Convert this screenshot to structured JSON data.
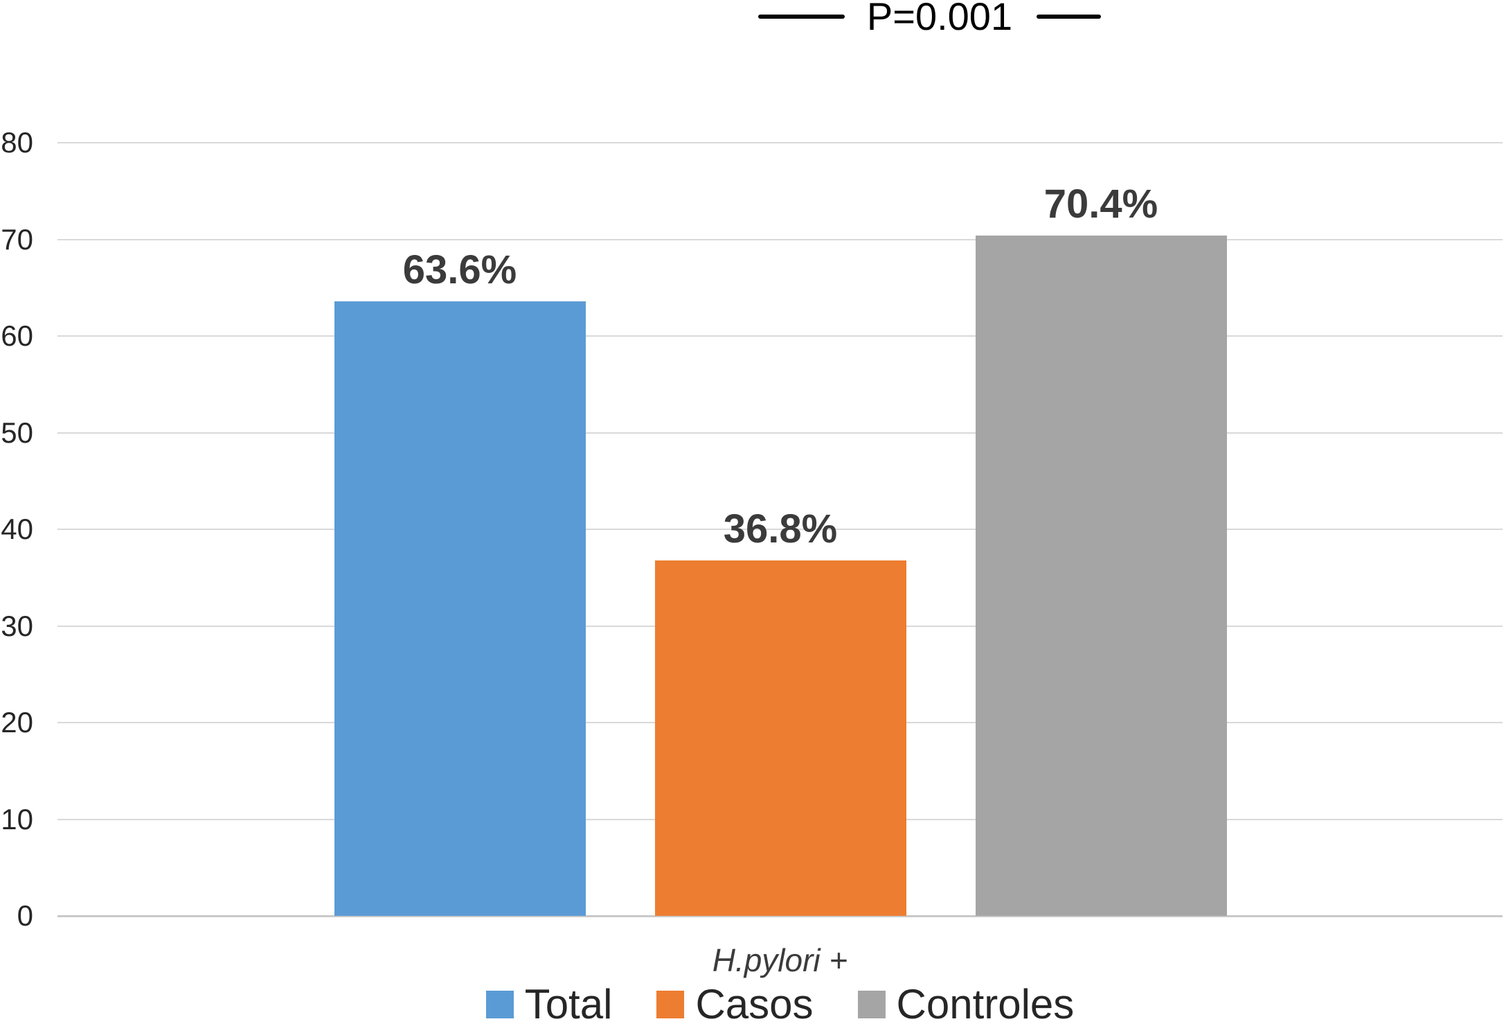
{
  "chart_data": {
    "type": "bar",
    "title": "",
    "annotation": {
      "text": "P=0.001"
    },
    "categories": [
      "H.pylori +"
    ],
    "y_axis": {
      "min": 0,
      "max": 80,
      "tick_interval": 10,
      "ticks": [
        80,
        70,
        60,
        50,
        40,
        30,
        20,
        10,
        0
      ]
    },
    "series": [
      {
        "name": "Total",
        "value": 63.6,
        "label": "63.6%",
        "color": "#5B9BD5"
      },
      {
        "name": "Casos",
        "value": 36.8,
        "label": "36.8%",
        "color": "#ED7D31"
      },
      {
        "name": "Controles",
        "value": 70.4,
        "label": "70.4%",
        "color": "#A5A5A5"
      }
    ],
    "legend": {
      "position": "bottom",
      "entries": [
        "Total",
        "Casos",
        "Controles"
      ]
    },
    "grid": true,
    "colors": {
      "gridline": "#D9D9D9",
      "axis_line": "#C9C9C9",
      "text": "#262626"
    }
  }
}
